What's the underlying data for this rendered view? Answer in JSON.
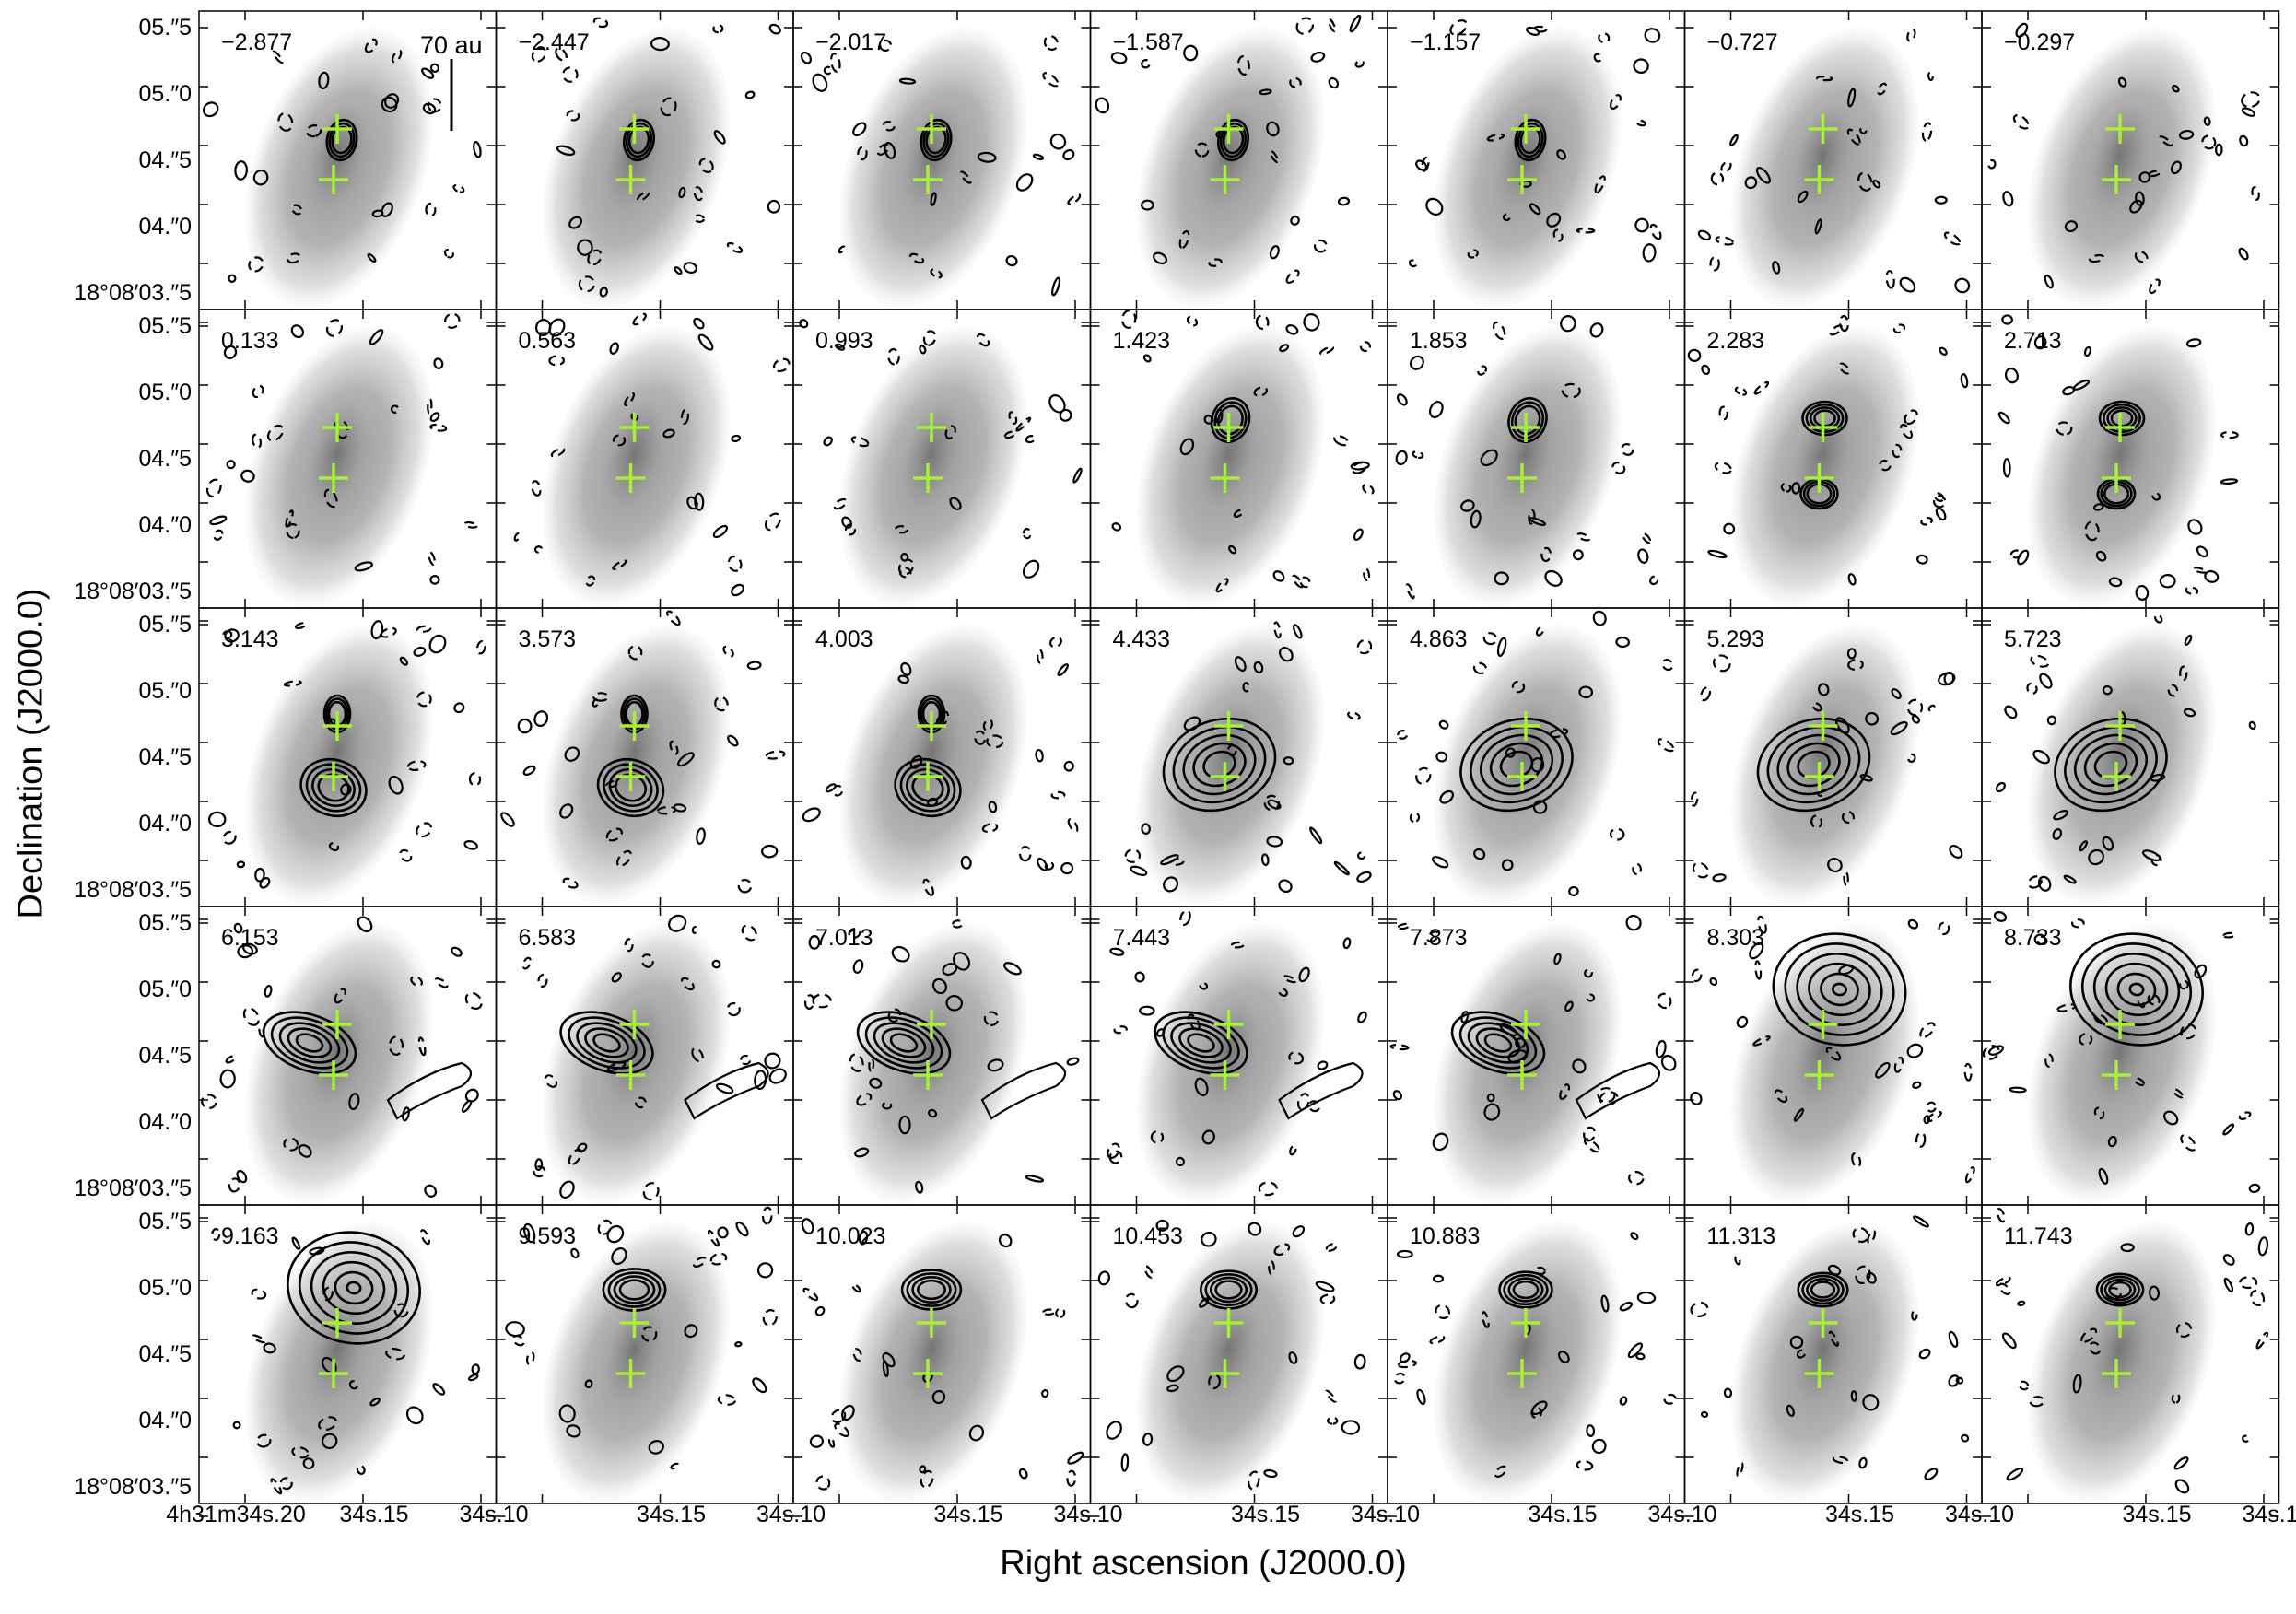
{
  "figure": {
    "x_axis_title": "Right ascension (J2000.0)",
    "y_axis_title": "Declination (J2000.0)",
    "scale_bar_label": "70 au",
    "x_tick_labels": [
      "4h31m34s.20",
      "34s.15",
      "34s.10"
    ],
    "y_tick_labels": [
      "05.″5",
      "05.″0",
      "04.″5",
      "04.″0",
      "18°08′03.″5"
    ],
    "marker_color": "#a6ef3a",
    "contour_color": "#000000",
    "background_color": "#9a9a9a"
  },
  "chart_data": {
    "type": "channel_map_grid",
    "rows": 5,
    "columns": 7,
    "channel_velocities": [
      "−2.877",
      "−2.447",
      "−2.017",
      "−1.587",
      "−1.157",
      "−0.727",
      "−0.297",
      "0.133",
      "0.563",
      "0.993",
      "1.423",
      "1.853",
      "2.283",
      "2.713",
      "3.143",
      "3.573",
      "4.003",
      "4.433",
      "4.863",
      "5.293",
      "5.723",
      "6.153",
      "6.583",
      "7.013",
      "7.443",
      "7.873",
      "8.303",
      "8.733",
      "9.163",
      "9.593",
      "10.023",
      "10.453",
      "10.883",
      "11.313",
      "11.743"
    ],
    "x_axis": {
      "label": "Right ascension (J2000.0)",
      "ticks": [
        "4h31m34s.20",
        "34s.15",
        "34s.10"
      ]
    },
    "y_axis": {
      "label": "Declination (J2000.0)",
      "ticks": [
        "18°08′03.″5",
        "04.″0",
        "04.″5",
        "05.″0",
        "05.″5"
      ]
    },
    "markers": [
      {
        "name": "source-north",
        "ra_offset": 0.0,
        "dec": "04.″72"
      },
      {
        "name": "source-south",
        "ra_offset": -0.004,
        "dec": "04.″36"
      }
    ]
  }
}
